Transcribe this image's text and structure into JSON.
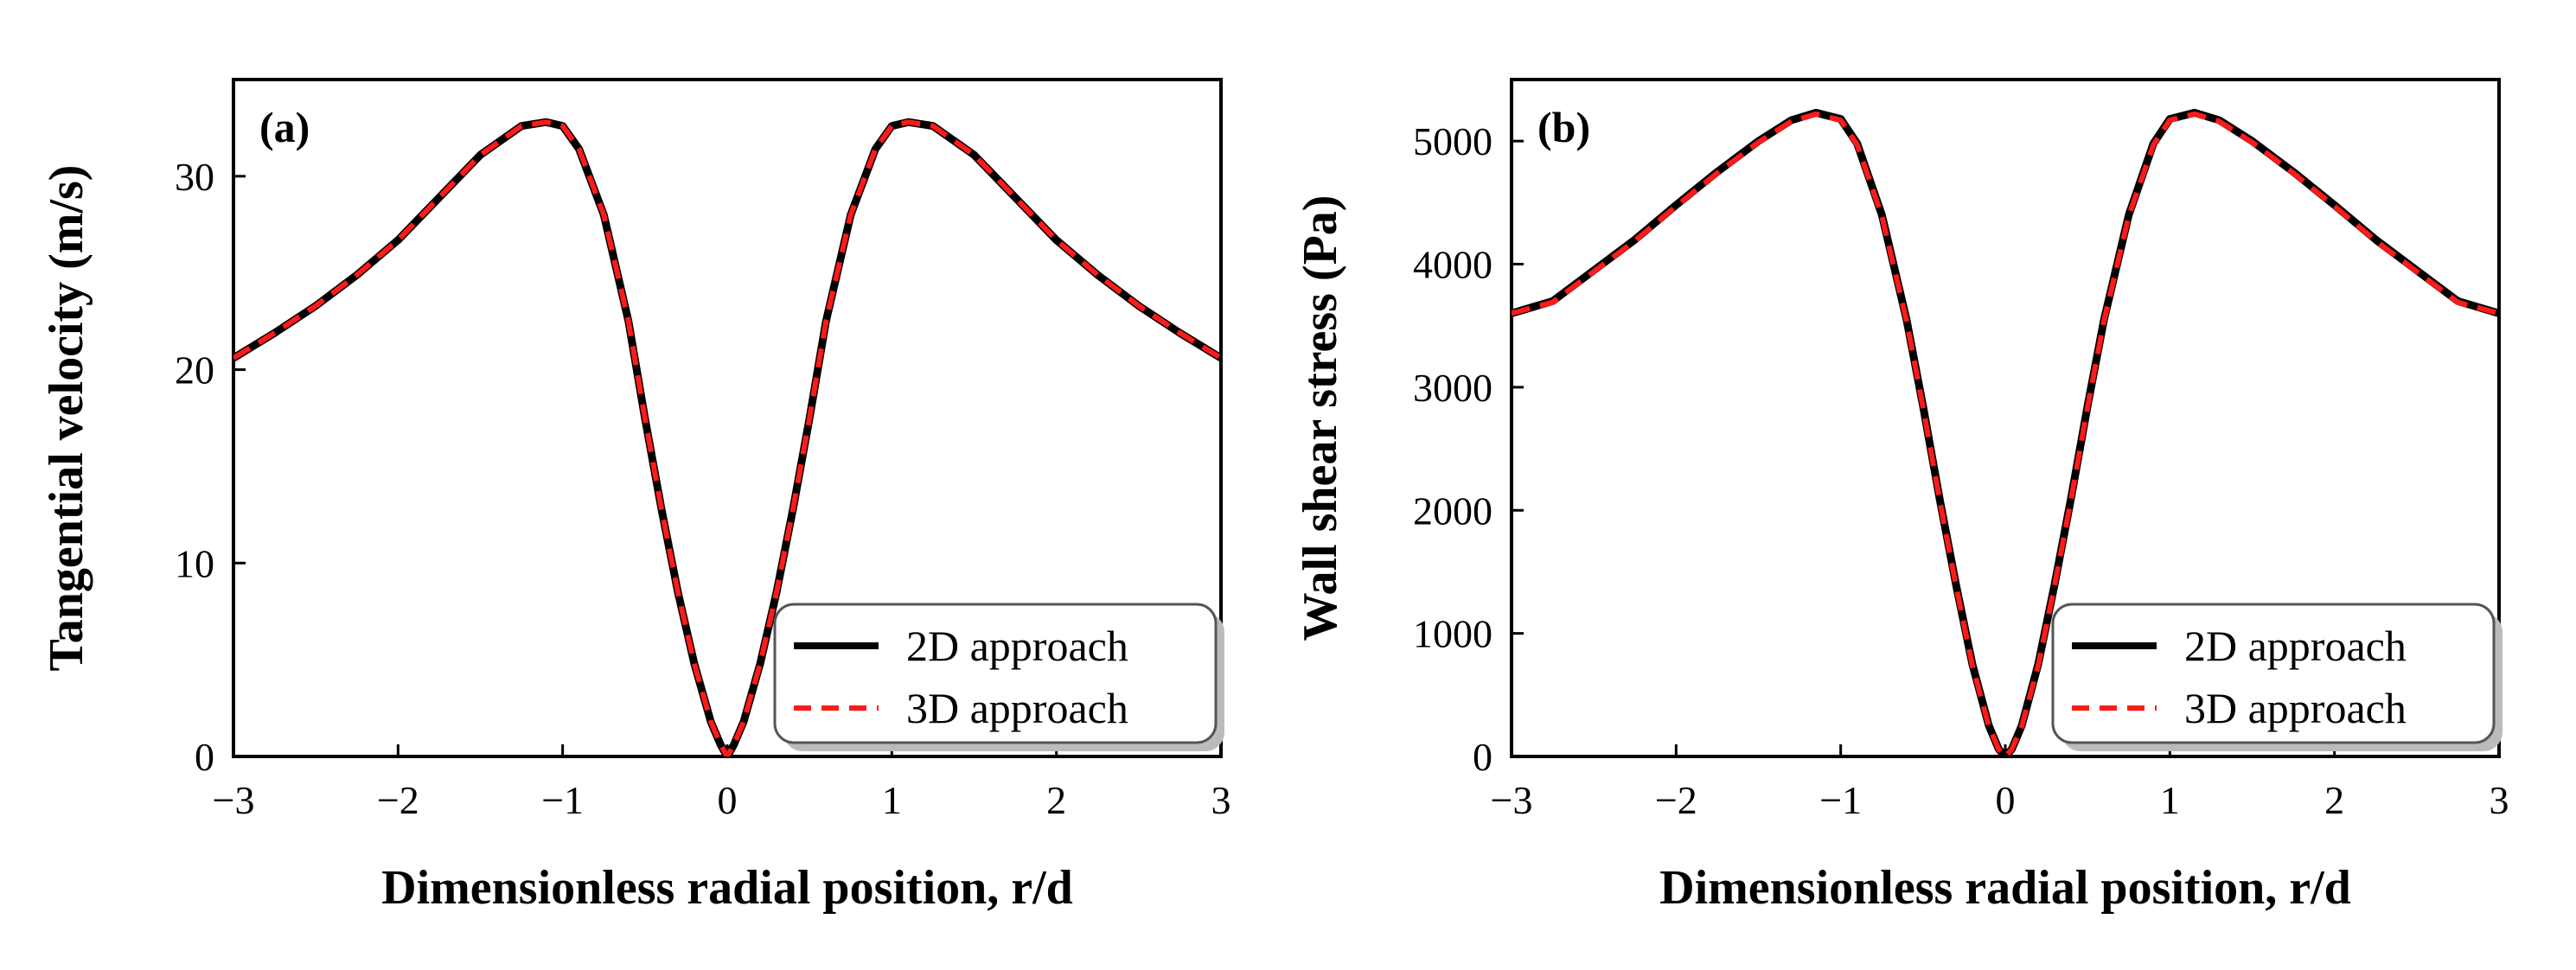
{
  "colors": {
    "series_2d": "#000000",
    "series_3d": "#ff1a1a",
    "axes": "#000000",
    "legend_border": "#555555",
    "legend_shadow": "#bbbbbb"
  },
  "chart_data": [
    {
      "type": "line",
      "panel_label": "(a)",
      "title": "",
      "xlabel": "Dimensionless radial position, r/d",
      "ylabel": "Tangential velocity (m/s)",
      "xlim": [
        -3,
        3
      ],
      "ylim": [
        0,
        35
      ],
      "xticks": [
        -3,
        -2,
        -1,
        0,
        1,
        2,
        3
      ],
      "xtick_labels": [
        "−3",
        "−2",
        "−1",
        "0",
        "1",
        "2",
        "3"
      ],
      "yticks": [
        0,
        10,
        20,
        30
      ],
      "ytick_labels": [
        "0",
        "10",
        "20",
        "30"
      ],
      "grid": false,
      "legend_position": "bottom-right",
      "x": [
        -3.0,
        -2.75,
        -2.5,
        -2.25,
        -2.0,
        -1.75,
        -1.5,
        -1.25,
        -1.1,
        -1.0,
        -0.9,
        -0.75,
        -0.6,
        -0.5,
        -0.4,
        -0.3,
        -0.2,
        -0.1,
        -0.04,
        0.0,
        0.04,
        0.1,
        0.2,
        0.3,
        0.4,
        0.5,
        0.6,
        0.75,
        0.9,
        1.0,
        1.1,
        1.25,
        1.5,
        1.75,
        2.0,
        2.25,
        2.5,
        2.75,
        3.0
      ],
      "series": [
        {
          "name": "2D approach",
          "style": "solid",
          "values": [
            20.6,
            21.9,
            23.3,
            24.9,
            26.7,
            28.9,
            31.1,
            32.6,
            32.8,
            32.6,
            31.4,
            28.0,
            22.5,
            17.5,
            12.8,
            8.5,
            4.8,
            1.8,
            0.6,
            0.0,
            0.6,
            1.8,
            4.8,
            8.5,
            12.8,
            17.5,
            22.5,
            28.0,
            31.4,
            32.6,
            32.8,
            32.6,
            31.1,
            28.9,
            26.7,
            24.9,
            23.3,
            21.9,
            20.6
          ]
        },
        {
          "name": "3D approach",
          "style": "dashed",
          "values": [
            20.6,
            21.9,
            23.3,
            24.9,
            26.7,
            28.9,
            31.1,
            32.6,
            32.8,
            32.6,
            31.4,
            28.0,
            22.5,
            17.5,
            12.8,
            8.5,
            4.8,
            1.8,
            0.6,
            0.0,
            0.6,
            1.8,
            4.8,
            8.5,
            12.8,
            17.5,
            22.5,
            28.0,
            31.4,
            32.6,
            32.8,
            32.6,
            31.1,
            28.9,
            26.7,
            24.9,
            23.3,
            21.9,
            20.6
          ]
        }
      ]
    },
    {
      "type": "line",
      "panel_label": "(b)",
      "title": "",
      "xlabel": "Dimensionless radial position, r/d",
      "ylabel": "Wall shear stress (Pa)",
      "xlim": [
        -3,
        3
      ],
      "ylim": [
        0,
        5500
      ],
      "xticks": [
        -3,
        -2,
        -1,
        0,
        1,
        2,
        3
      ],
      "xtick_labels": [
        "−3",
        "−2",
        "−1",
        "0",
        "1",
        "2",
        "3"
      ],
      "yticks": [
        0,
        1000,
        2000,
        3000,
        4000,
        5000
      ],
      "ytick_labels": [
        "0",
        "1000",
        "2000",
        "3000",
        "4000",
        "5000"
      ],
      "grid": false,
      "legend_position": "bottom-right",
      "x": [
        -3.0,
        -2.75,
        -2.5,
        -2.25,
        -2.0,
        -1.75,
        -1.5,
        -1.3,
        -1.15,
        -1.0,
        -0.9,
        -0.75,
        -0.6,
        -0.5,
        -0.4,
        -0.3,
        -0.2,
        -0.1,
        -0.04,
        0.0,
        0.04,
        0.1,
        0.2,
        0.3,
        0.4,
        0.5,
        0.6,
        0.75,
        0.9,
        1.0,
        1.15,
        1.3,
        1.5,
        1.75,
        2.0,
        2.25,
        2.5,
        2.75,
        3.0
      ],
      "series": [
        {
          "name": "2D approach",
          "style": "solid",
          "values": [
            3600,
            3700,
            3950,
            4200,
            4480,
            4750,
            5000,
            5170,
            5230,
            5180,
            4980,
            4400,
            3550,
            2850,
            2100,
            1400,
            750,
            250,
            60,
            0,
            60,
            250,
            750,
            1400,
            2100,
            2850,
            3550,
            4400,
            4980,
            5180,
            5230,
            5170,
            5000,
            4750,
            4480,
            4200,
            3950,
            3700,
            3600
          ]
        },
        {
          "name": "3D approach",
          "style": "dashed",
          "values": [
            3600,
            3690,
            3940,
            4190,
            4470,
            4740,
            4990,
            5160,
            5220,
            5170,
            4970,
            4390,
            3540,
            2840,
            2090,
            1390,
            740,
            245,
            58,
            0,
            58,
            245,
            740,
            1390,
            2090,
            2840,
            3540,
            4390,
            4970,
            5170,
            5220,
            5160,
            4990,
            4740,
            4470,
            4190,
            3940,
            3690,
            3600
          ]
        }
      ]
    }
  ]
}
